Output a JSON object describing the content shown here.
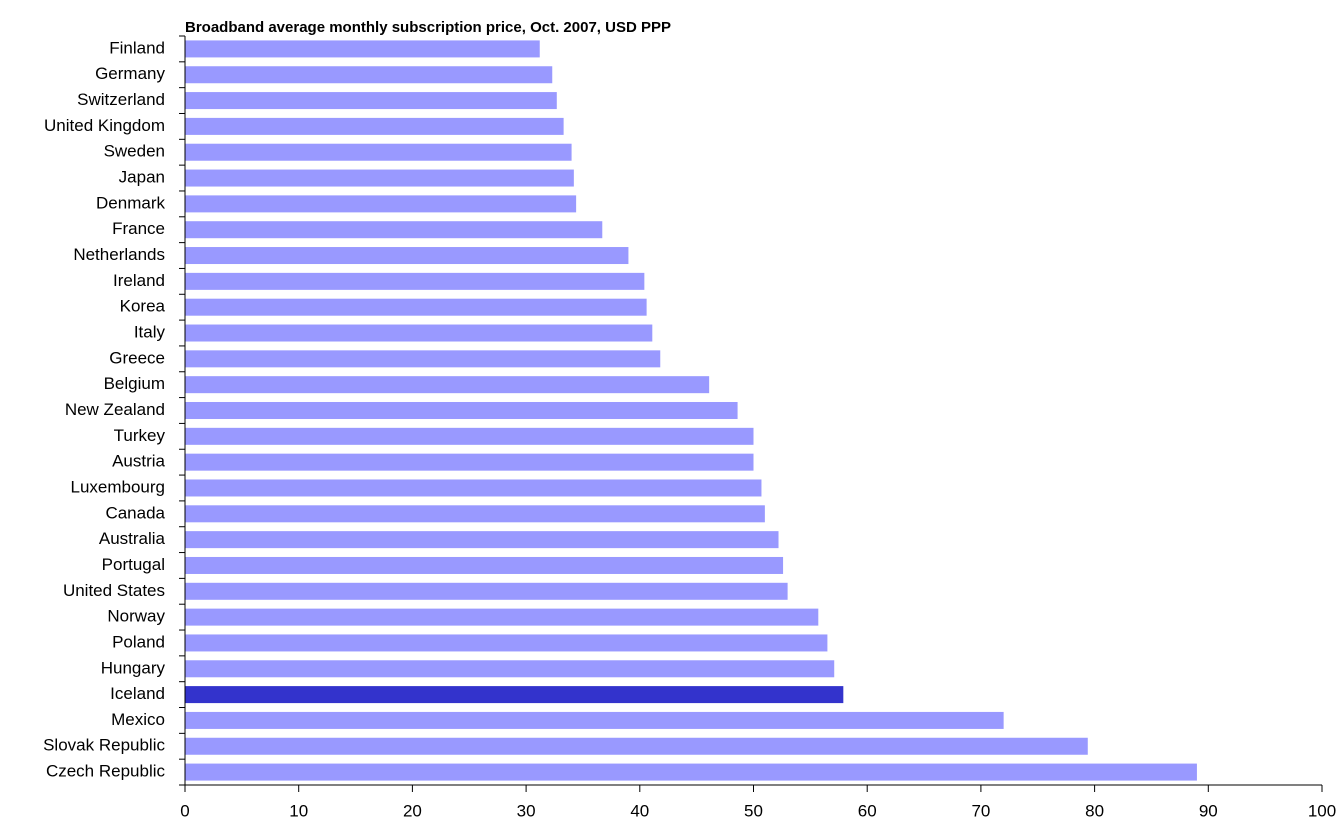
{
  "chart_data": {
    "type": "barh",
    "title": "Broadband average monthly subscription price, Oct. 2007, USD PPP",
    "categories": [
      "Finland",
      "Germany",
      "Switzerland",
      "United Kingdom",
      "Sweden",
      "Japan",
      "Denmark",
      "France",
      "Netherlands",
      "Ireland",
      "Korea",
      "Italy",
      "Greece",
      "Belgium",
      "New Zealand",
      "Turkey",
      "Austria",
      "Luxembourg",
      "Canada",
      "Australia",
      "Portugal",
      "United States",
      "Norway",
      "Poland",
      "Hungary",
      "Iceland",
      "Mexico",
      "Slovak Republic",
      "Czech Republic"
    ],
    "values": [
      31.2,
      32.3,
      32.7,
      33.3,
      34.0,
      34.2,
      34.4,
      36.7,
      39.0,
      40.4,
      40.6,
      41.1,
      41.8,
      46.1,
      48.6,
      50.0,
      50.0,
      50.7,
      51.0,
      52.2,
      52.6,
      53.0,
      55.7,
      56.5,
      57.1,
      57.9,
      72.0,
      79.4,
      89.0
    ],
    "colors": [
      "#9999ff",
      "#9999ff",
      "#9999ff",
      "#9999ff",
      "#9999ff",
      "#9999ff",
      "#9999ff",
      "#9999ff",
      "#9999ff",
      "#9999ff",
      "#9999ff",
      "#9999ff",
      "#9999ff",
      "#9999ff",
      "#9999ff",
      "#9999ff",
      "#9999ff",
      "#9999ff",
      "#9999ff",
      "#9999ff",
      "#9999ff",
      "#9999ff",
      "#9999ff",
      "#9999ff",
      "#9999ff",
      "#3333cc",
      "#9999ff",
      "#9999ff",
      "#9999ff"
    ],
    "xlim": [
      0,
      100
    ],
    "xticks": [
      0,
      10,
      20,
      30,
      40,
      50,
      60,
      70,
      80,
      90,
      100
    ],
    "grid": false
  }
}
